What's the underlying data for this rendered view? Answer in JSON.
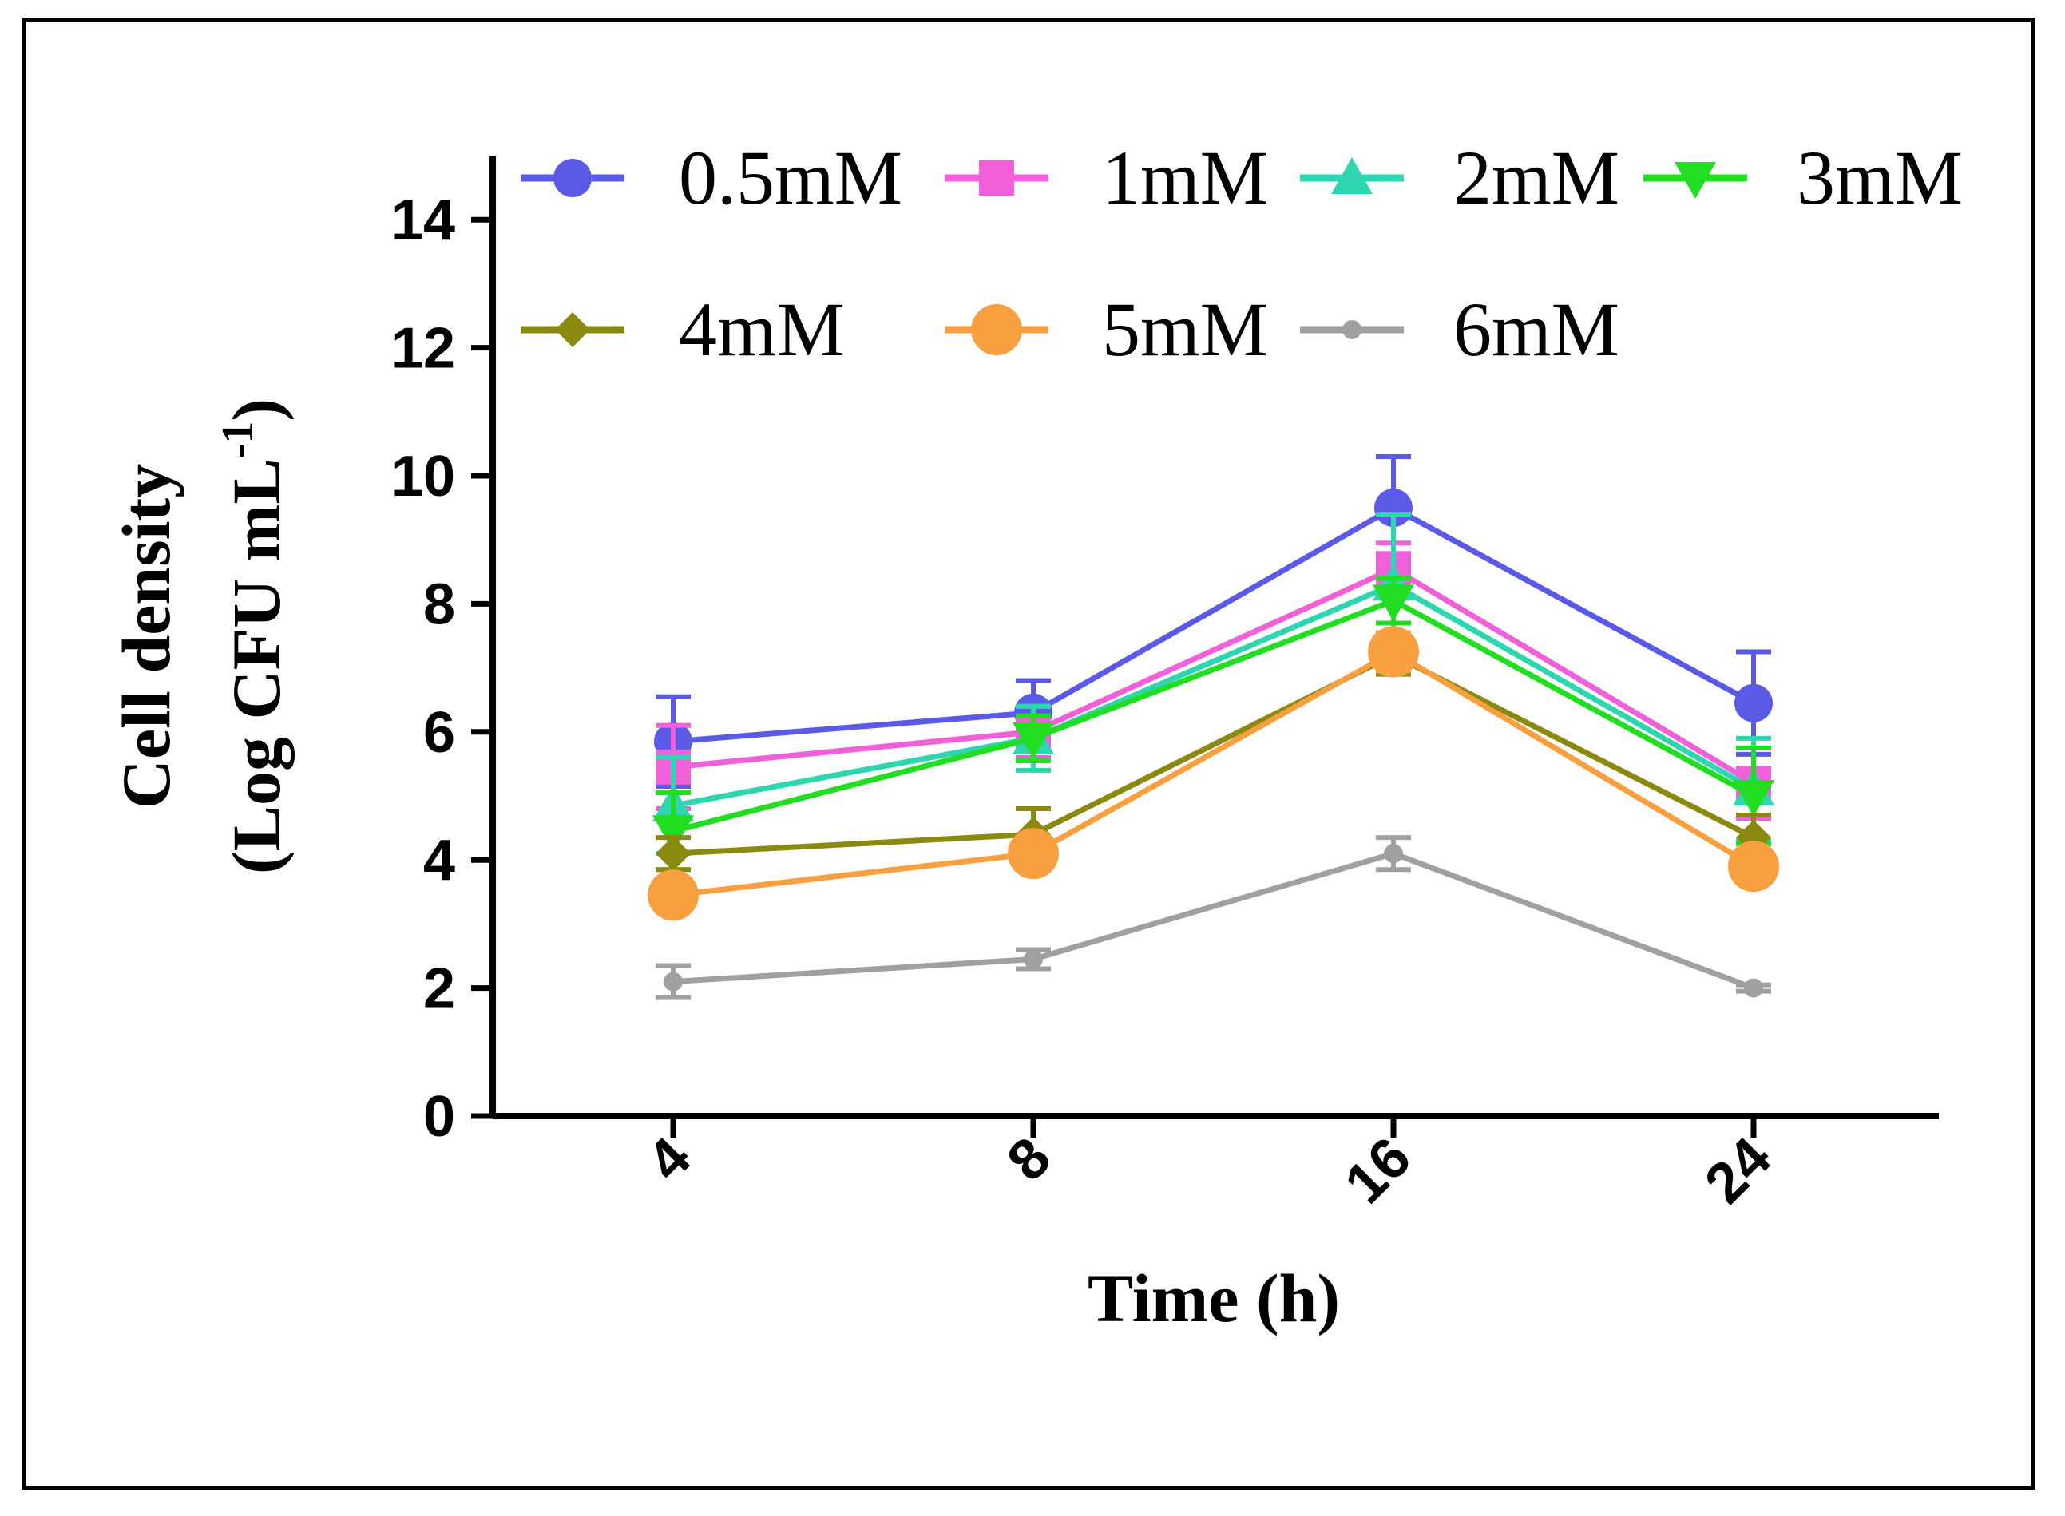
{
  "chart_data": {
    "type": "line",
    "title": "",
    "xlabel": "Time (h)",
    "ylabel_line1": "Cell density",
    "ylabel_line2_prefix": "(Log CFU mL",
    "ylabel_superscript": "-1",
    "ylabel_line2_suffix": ")",
    "categories": [
      "4",
      "8",
      "16",
      "24"
    ],
    "ylim": [
      0,
      15
    ],
    "yticks": [
      0,
      2,
      4,
      6,
      8,
      10,
      12,
      14
    ],
    "ytick_labels": [
      "0",
      "2",
      "4",
      "6",
      "8",
      "10",
      "12",
      "14"
    ],
    "grid": false,
    "legend_position": "top",
    "series": [
      {
        "name": "0.5mM",
        "color": "#5a5ae6",
        "marker": "circle",
        "values": [
          5.85,
          6.3,
          9.5,
          6.45
        ],
        "errors": [
          0.7,
          0.5,
          0.8,
          0.8
        ]
      },
      {
        "name": "1mM",
        "color": "#f060d8",
        "marker": "square",
        "values": [
          5.45,
          6.0,
          8.55,
          5.2
        ],
        "errors": [
          0.65,
          0.4,
          0.4,
          0.55
        ]
      },
      {
        "name": "2mM",
        "color": "#2ed6b0",
        "marker": "triangle",
        "values": [
          4.85,
          5.9,
          8.3,
          5.1
        ],
        "errors": [
          0.75,
          0.5,
          1.1,
          0.8
        ]
      },
      {
        "name": "3mM",
        "color": "#22dd22",
        "marker": "triangle-down",
        "values": [
          4.45,
          5.9,
          8.05,
          5.0
        ],
        "errors": [
          0.6,
          0.35,
          0.35,
          0.75
        ]
      },
      {
        "name": "4mM",
        "color": "#8a8a10",
        "marker": "diamond",
        "values": [
          4.1,
          4.4,
          7.2,
          4.35
        ],
        "errors": [
          0.25,
          0.4,
          0.3,
          0.35
        ]
      },
      {
        "name": "5mM",
        "color": "#f8a040",
        "marker": "circle-large",
        "values": [
          3.45,
          4.1,
          7.25,
          3.9
        ],
        "errors": [
          0.2,
          0.25,
          0.3,
          0.2
        ]
      },
      {
        "name": "6mM",
        "color": "#a0a0a0",
        "marker": "dot",
        "values": [
          2.1,
          2.45,
          4.1,
          2.0
        ],
        "errors": [
          0.25,
          0.15,
          0.25,
          0.05
        ]
      }
    ]
  }
}
